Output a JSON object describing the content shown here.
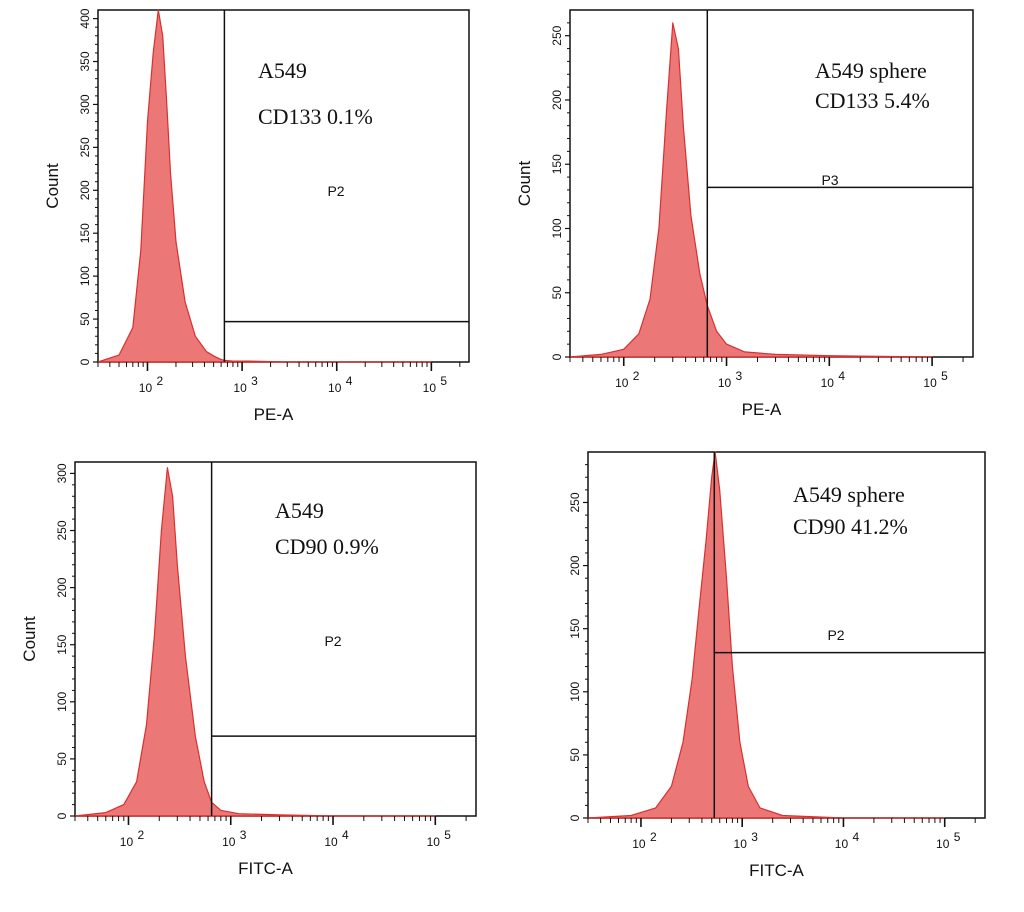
{
  "chart_data": [
    {
      "type": "area",
      "x_scale": "log",
      "xlim": [
        30,
        250000
      ],
      "ylim": [
        0,
        410
      ],
      "xlabel": "PE-A",
      "ylabel": "Count",
      "x_ticks": [
        "10",
        "2",
        "10",
        "3",
        "10",
        "4",
        "10",
        "5"
      ],
      "y_ticks": [
        "0",
        "50",
        "100",
        "150",
        "200",
        "250",
        "300",
        "350",
        "400"
      ],
      "y_tick_values": [
        0,
        50,
        100,
        150,
        200,
        250,
        300,
        350,
        400
      ],
      "annotation": [
        "A549",
        "CD133 0.1%"
      ],
      "gate": {
        "label": "P2",
        "x_start": 650,
        "y_level": 47
      },
      "series": [
        {
          "x": [
            30,
            50,
            70,
            85,
            100,
            115,
            130,
            145,
            160,
            175,
            200,
            250,
            320,
            420,
            520,
            600,
            650,
            800,
            1200,
            3000,
            10000,
            100000
          ],
          "values": [
            0,
            8,
            40,
            130,
            280,
            360,
            410,
            380,
            300,
            220,
            140,
            70,
            30,
            12,
            6,
            3,
            2,
            1,
            1,
            0,
            0,
            0
          ]
        }
      ],
      "color": "#e8605f"
    },
    {
      "type": "area",
      "x_scale": "log",
      "xlim": [
        30,
        250000
      ],
      "ylim": [
        0,
        270
      ],
      "xlabel": "PE-A",
      "ylabel": "Count",
      "x_ticks": [
        "10",
        "2",
        "10",
        "3",
        "10",
        "4",
        "10",
        "5"
      ],
      "y_ticks": [
        "0",
        "50",
        "100",
        "150",
        "200",
        "250"
      ],
      "y_tick_values": [
        0,
        50,
        100,
        150,
        200,
        250
      ],
      "annotation": [
        "A549 sphere",
        "CD133 5.4%"
      ],
      "gate": {
        "label": "P3",
        "x_start": 650,
        "y_level": 132
      },
      "series": [
        {
          "x": [
            30,
            60,
            100,
            140,
            180,
            220,
            260,
            300,
            340,
            380,
            450,
            550,
            650,
            800,
            1000,
            1500,
            3000,
            10000,
            100000
          ],
          "values": [
            0,
            2,
            6,
            18,
            45,
            100,
            190,
            260,
            240,
            180,
            110,
            65,
            40,
            20,
            10,
            4,
            2,
            1,
            0
          ]
        }
      ],
      "color": "#e8605f"
    },
    {
      "type": "area",
      "x_scale": "log",
      "xlim": [
        30,
        250000
      ],
      "ylim": [
        0,
        310
      ],
      "xlabel": "FITC-A",
      "ylabel": "Count",
      "x_ticks": [
        "10",
        "2",
        "10",
        "3",
        "10",
        "4",
        "10",
        "5"
      ],
      "y_ticks": [
        "0",
        "50",
        "100",
        "150",
        "200",
        "250",
        "300"
      ],
      "y_tick_values": [
        0,
        50,
        100,
        150,
        200,
        250,
        300
      ],
      "annotation": [
        "A549",
        "CD90 0.9%"
      ],
      "gate": {
        "label": "P2",
        "x_start": 650,
        "y_level": 70
      },
      "series": [
        {
          "x": [
            30,
            60,
            90,
            120,
            150,
            180,
            210,
            240,
            270,
            300,
            360,
            450,
            550,
            650,
            800,
            1200,
            3000,
            10000,
            100000
          ],
          "values": [
            0,
            3,
            10,
            30,
            80,
            160,
            250,
            305,
            280,
            220,
            140,
            70,
            30,
            12,
            5,
            2,
            1,
            0,
            0
          ]
        }
      ],
      "color": "#e8605f"
    },
    {
      "type": "area",
      "x_scale": "log",
      "xlim": [
        30,
        250000
      ],
      "ylim": [
        0,
        290
      ],
      "xlabel": "FITC-A",
      "ylabel": "",
      "x_ticks": [
        "10",
        "2",
        "10",
        "3",
        "10",
        "4",
        "10",
        "5"
      ],
      "y_ticks": [
        "0",
        "50",
        "100",
        "150",
        "200",
        "250"
      ],
      "y_tick_values": [
        0,
        50,
        100,
        150,
        200,
        250
      ],
      "annotation": [
        "A549 sphere",
        "CD90 41.2%"
      ],
      "gate": {
        "label": "P2",
        "x_start": 530,
        "y_level": 131
      },
      "series": [
        {
          "x": [
            30,
            80,
            140,
            200,
            260,
            320,
            380,
            440,
            500,
            540,
            600,
            700,
            800,
            950,
            1150,
            1500,
            2500,
            10000,
            100000
          ],
          "values": [
            0,
            2,
            8,
            25,
            60,
            110,
            170,
            220,
            270,
            290,
            260,
            190,
            120,
            60,
            25,
            8,
            2,
            0,
            0
          ]
        }
      ],
      "color": "#e8605f"
    }
  ]
}
